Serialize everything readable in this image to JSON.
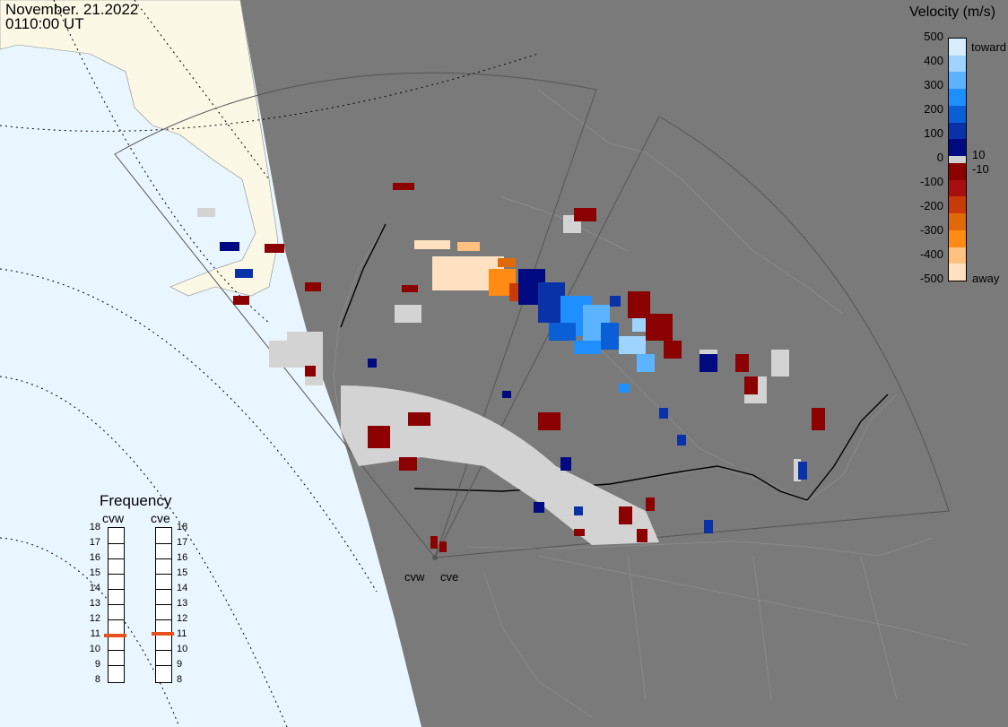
{
  "header": {
    "date": "November. 21.2022",
    "time": "0110:00 UT"
  },
  "colorbar": {
    "title": "Velocity (m/s)",
    "ticks": [
      "500",
      "400",
      "300",
      "200",
      "100",
      "0",
      "-100",
      "-200",
      "-300",
      "-400",
      "-500"
    ],
    "label_toward": "toward",
    "label_away": "away",
    "label_plus": "10",
    "label_minus": "-10",
    "colors": [
      "#d7ecff",
      "#9fd4ff",
      "#5cb3ff",
      "#1f8fff",
      "#0a5fd6",
      "#0a32a8",
      "#000a80",
      "#8b0000",
      "#a80f0f",
      "#c83a0a",
      "#e06a0a",
      "#ff8a14",
      "#ffc080",
      "#ffe0c0"
    ]
  },
  "frequency": {
    "title": "Frequency",
    "radars": [
      {
        "name": "cvw",
        "value_mhz": 10.9
      },
      {
        "name": "cve",
        "value_mhz": 11.0
      }
    ],
    "ticks": [
      "18",
      "17",
      "16",
      "15",
      "14",
      "13",
      "12",
      "11",
      "10",
      "9",
      "8"
    ],
    "marker_color": "#e8501e"
  },
  "sites": [
    "cvw",
    "cve"
  ],
  "colors": {
    "ground_scatter": "#d3d3d3",
    "night": "#7a7a7a",
    "ocean_day": "#eaf6ff",
    "land_day": "#fbf8e6"
  }
}
